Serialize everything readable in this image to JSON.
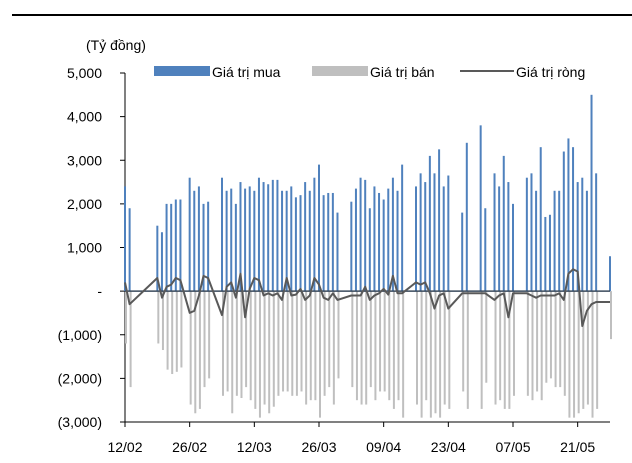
{
  "chart_data": {
    "type": "bar",
    "unit_label": "(Tỷ đồng)",
    "ylim": [
      -3000,
      5000
    ],
    "y_ticks": [
      {
        "value": 5000,
        "label": "5,000"
      },
      {
        "value": 4000,
        "label": "4,000"
      },
      {
        "value": 3000,
        "label": "3,000"
      },
      {
        "value": 2000,
        "label": "2,000"
      },
      {
        "value": 1000,
        "label": "1,000"
      },
      {
        "value": 0,
        "label": "-"
      },
      {
        "value": -1000,
        "label": "(1,000)"
      },
      {
        "value": -2000,
        "label": "(2,000)"
      },
      {
        "value": -3000,
        "label": "(3,000)"
      }
    ],
    "x_tick_labels": [
      "12/02",
      "26/02",
      "12/03",
      "26/03",
      "09/04",
      "23/04",
      "07/05",
      "21/05"
    ],
    "x_tick_positions": [
      0,
      14,
      28,
      42,
      56,
      70,
      84,
      98
    ],
    "legend": [
      "Giá trị mua",
      "Giá trị bán",
      "Giá trị ròng"
    ],
    "colors": {
      "buy": "#4f81bd",
      "sell": "#bfbfbf",
      "net": "#595959"
    },
    "series": [
      {
        "name": "Giá trị mua",
        "x": [
          0,
          1,
          7,
          8,
          9,
          10,
          11,
          12,
          14,
          15,
          16,
          17,
          18,
          21,
          22,
          23,
          24,
          25,
          26,
          27,
          28,
          29,
          30,
          31,
          32,
          33,
          34,
          35,
          36,
          37,
          38,
          39,
          40,
          41,
          42,
          43,
          44,
          45,
          46,
          49,
          50,
          51,
          52,
          53,
          54,
          55,
          56,
          57,
          58,
          59,
          60,
          63,
          64,
          65,
          66,
          67,
          68,
          69,
          70,
          73,
          74,
          77,
          78,
          80,
          81,
          82,
          83,
          84,
          87,
          88,
          89,
          90,
          91,
          92,
          93,
          94,
          95,
          96,
          97,
          98,
          99,
          100,
          101,
          102,
          105
        ],
        "values": [
          2400,
          1900,
          1500,
          1350,
          2000,
          2000,
          2100,
          2100,
          2600,
          2300,
          2400,
          2000,
          2050,
          2600,
          2300,
          2350,
          2000,
          2500,
          2350,
          2400,
          2300,
          2600,
          2500,
          2450,
          2550,
          2550,
          2300,
          2300,
          2400,
          2150,
          2200,
          2500,
          2300,
          2600,
          2900,
          2200,
          2250,
          2250,
          1800,
          2050,
          2350,
          2600,
          2550,
          1900,
          2400,
          2250,
          2100,
          2350,
          2600,
          2300,
          2900,
          2400,
          2700,
          2500,
          3100,
          2700,
          3250,
          2400,
          2650,
          1800,
          3400,
          3800,
          1900,
          2700,
          2400,
          3100,
          2500,
          2000,
          2600,
          2700,
          2300,
          3300,
          1700,
          1750,
          2300,
          2300,
          3200,
          3500,
          3300,
          2500,
          2600,
          2300,
          4500,
          2700,
          800
        ]
      },
      {
        "name": "Giá trị bán",
        "x": [
          0,
          1,
          7,
          8,
          9,
          10,
          11,
          12,
          14,
          15,
          16,
          17,
          18,
          21,
          22,
          23,
          24,
          25,
          26,
          27,
          28,
          29,
          30,
          31,
          32,
          33,
          34,
          35,
          36,
          37,
          38,
          39,
          40,
          41,
          42,
          43,
          44,
          45,
          46,
          49,
          50,
          51,
          52,
          53,
          54,
          55,
          56,
          57,
          58,
          59,
          60,
          63,
          64,
          65,
          66,
          67,
          68,
          69,
          70,
          73,
          74,
          77,
          78,
          80,
          81,
          82,
          83,
          84,
          87,
          88,
          89,
          90,
          91,
          92,
          93,
          94,
          95,
          96,
          97,
          98,
          99,
          100,
          101,
          102,
          105
        ],
        "values": [
          -1200,
          -2200,
          -1200,
          -1350,
          -1800,
          -1900,
          -1850,
          -1750,
          -2600,
          -2800,
          -2700,
          -2200,
          -2000,
          -2400,
          -2300,
          -2800,
          -2400,
          -2450,
          -2200,
          -2500,
          -2700,
          -2900,
          -2600,
          -2800,
          -2650,
          -2400,
          -2300,
          -2300,
          -2400,
          -2400,
          -2300,
          -2600,
          -2500,
          -2500,
          -2900,
          -2400,
          -2200,
          -2600,
          -2000,
          -2200,
          -2500,
          -2600,
          -2600,
          -2200,
          -2500,
          -2300,
          -2300,
          -2500,
          -2700,
          -2500,
          -2900,
          -2600,
          -2900,
          -2500,
          -2900,
          -2800,
          -2900,
          -2600,
          -2700,
          -2300,
          -2700,
          -2700,
          -2100,
          -2600,
          -2500,
          -2700,
          -2700,
          -2400,
          -2400,
          -2500,
          -2300,
          -2500,
          -2100,
          -2000,
          -2200,
          -2200,
          -2400,
          -2900,
          -2900,
          -2800,
          -2700,
          -2600,
          -2900,
          -2700,
          -1100
        ]
      },
      {
        "name": "Giá trị ròng",
        "x": [
          0,
          1,
          7,
          8,
          9,
          10,
          11,
          12,
          14,
          15,
          16,
          17,
          18,
          21,
          22,
          23,
          24,
          25,
          26,
          27,
          28,
          29,
          30,
          31,
          32,
          33,
          34,
          35,
          36,
          37,
          38,
          39,
          40,
          41,
          42,
          43,
          44,
          45,
          46,
          49,
          50,
          51,
          52,
          53,
          54,
          55,
          56,
          57,
          58,
          59,
          60,
          63,
          64,
          65,
          66,
          67,
          68,
          69,
          70,
          73,
          74,
          77,
          78,
          80,
          81,
          82,
          83,
          84,
          87,
          88,
          89,
          90,
          91,
          92,
          93,
          94,
          95,
          96,
          97,
          98,
          99,
          100,
          101,
          102,
          105
        ],
        "values": [
          200,
          -300,
          300,
          -150,
          100,
          150,
          300,
          250,
          -500,
          -450,
          -100,
          350,
          300,
          -550,
          100,
          200,
          -150,
          400,
          -600,
          50,
          300,
          250,
          -100,
          -50,
          -100,
          -50,
          -200,
          300,
          -100,
          -80,
          50,
          -200,
          -100,
          300,
          150,
          -150,
          -200,
          -50,
          -200,
          -100,
          -100,
          -100,
          100,
          -200,
          -100,
          -50,
          50,
          -80,
          350,
          -50,
          -50,
          200,
          150,
          200,
          -50,
          -400,
          -100,
          -50,
          -400,
          -50,
          -50,
          -50,
          -50,
          -200,
          -100,
          -50,
          -600,
          -50,
          -50,
          -100,
          -150,
          -100,
          -100,
          -100,
          -100,
          -50,
          -200,
          400,
          500,
          450,
          -800,
          -450,
          -300,
          -250,
          -250
        ]
      }
    ]
  }
}
